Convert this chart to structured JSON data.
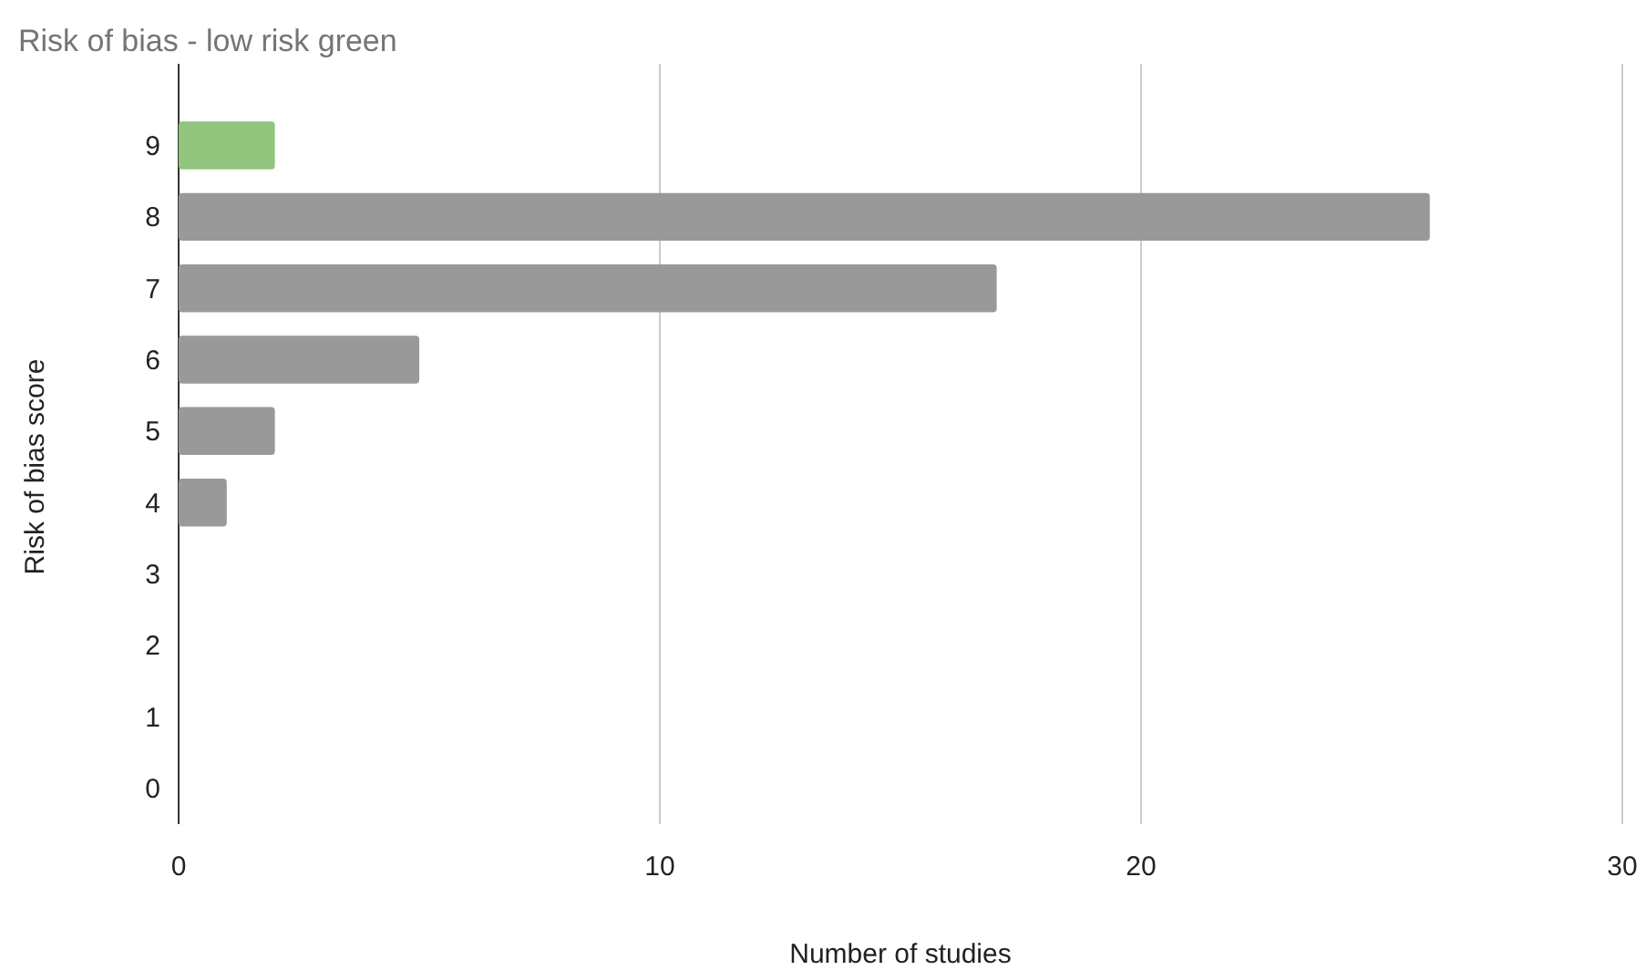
{
  "chart_data": {
    "type": "bar",
    "orientation": "horizontal",
    "title": "Risk of bias - low risk green",
    "xlabel": "Number of studies",
    "ylabel": "Risk of bias score",
    "categories": [
      "9",
      "8",
      "7",
      "6",
      "5",
      "4",
      "3",
      "2",
      "1",
      "0"
    ],
    "values": [
      2,
      26,
      17,
      5,
      2,
      1,
      0,
      0,
      0,
      0
    ],
    "colors": [
      "#93c47d",
      "#999999",
      "#999999",
      "#999999",
      "#999999",
      "#999999",
      "#999999",
      "#999999",
      "#999999",
      "#999999"
    ],
    "xlim": [
      0,
      30
    ],
    "xticks": [
      0,
      10,
      20,
      30
    ],
    "grid": "x"
  }
}
